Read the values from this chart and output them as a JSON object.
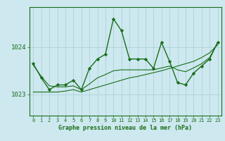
{
  "title": "Graphe pression niveau de la mer (hPa)",
  "bg_color": "#cde8ef",
  "grid_color": "#a8cdd6",
  "line_color": "#1a6e1a",
  "marker_color": "#1a6e1a",
  "x_labels": [
    "0",
    "1",
    "2",
    "3",
    "4",
    "5",
    "6",
    "7",
    "8",
    "9",
    "10",
    "11",
    "12",
    "13",
    "14",
    "15",
    "16",
    "17",
    "18",
    "19",
    "20",
    "21",
    "22",
    "23"
  ],
  "ylim": [
    1022.55,
    1024.85
  ],
  "yticks": [
    1023,
    1024
  ],
  "xlim": [
    -0.5,
    23.5
  ],
  "main_line": [
    1023.65,
    1023.35,
    1023.1,
    1023.2,
    1023.2,
    1023.3,
    1023.1,
    1023.55,
    1023.75,
    1023.85,
    1024.6,
    1024.35,
    1023.75,
    1023.75,
    1023.75,
    1023.55,
    1024.1,
    1023.7,
    1023.25,
    1023.2,
    1023.45,
    1023.6,
    1023.75,
    1024.1
  ],
  "line2": [
    1023.05,
    1023.05,
    1023.05,
    1023.05,
    1023.07,
    1023.1,
    1023.05,
    1023.1,
    1023.15,
    1023.2,
    1023.25,
    1023.3,
    1023.35,
    1023.38,
    1023.42,
    1023.46,
    1023.5,
    1023.55,
    1023.6,
    1023.65,
    1023.7,
    1023.78,
    1023.88,
    1024.05
  ],
  "line3": [
    1023.62,
    1023.38,
    1023.18,
    1023.16,
    1023.16,
    1023.18,
    1023.1,
    1023.22,
    1023.35,
    1023.42,
    1023.5,
    1023.52,
    1023.52,
    1023.52,
    1023.52,
    1023.52,
    1023.56,
    1023.6,
    1023.52,
    1023.48,
    1023.56,
    1023.65,
    1023.78,
    1024.1
  ]
}
